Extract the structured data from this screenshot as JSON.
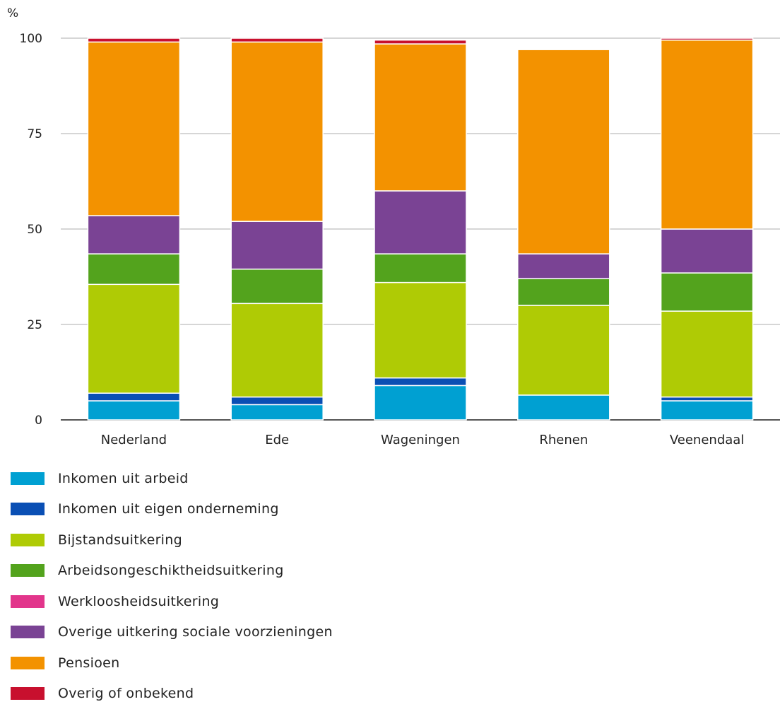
{
  "chart_data": {
    "type": "bar",
    "stacked": true,
    "unit_label": "%",
    "ylim": [
      0,
      100
    ],
    "yticks": [
      "0",
      "25",
      "50",
      "75",
      "100"
    ],
    "grid": true,
    "legend_position": "bottom",
    "categories": [
      "Nederland",
      "Ede",
      "Wageningen",
      "Rhenen",
      "Veenendaal"
    ],
    "series": [
      {
        "name": "Inkomen uit arbeid",
        "color": "#00a0d2",
        "values": [
          5,
          4,
          9,
          6.5,
          5
        ]
      },
      {
        "name": "Inkomen uit eigen onderneming",
        "color": "#0a4fb4",
        "values": [
          2,
          2,
          2,
          0,
          1
        ]
      },
      {
        "name": "Bijstandsuitkering",
        "color": "#afcb05",
        "values": [
          28.5,
          24.5,
          25,
          23.5,
          22.5
        ]
      },
      {
        "name": "Arbeidsongeschiktheidsuitkering",
        "color": "#53a31d",
        "values": [
          8,
          9,
          7.5,
          7,
          10
        ]
      },
      {
        "name": "Werkloosheidsuitkering",
        "color": "#e2358b",
        "values": [
          0,
          0,
          0,
          0,
          0
        ]
      },
      {
        "name": "Overige uitkering sociale voorzieningen",
        "color": "#7a4394",
        "values": [
          10,
          12.5,
          16.5,
          6.5,
          11.5
        ]
      },
      {
        "name": "Pensioen",
        "color": "#f39200",
        "values": [
          45.5,
          47,
          38.5,
          53.5,
          49.5
        ]
      },
      {
        "name": "Overig of onbekend",
        "color": "#c8102e",
        "values": [
          1,
          1,
          1,
          0,
          0.5
        ]
      }
    ]
  }
}
